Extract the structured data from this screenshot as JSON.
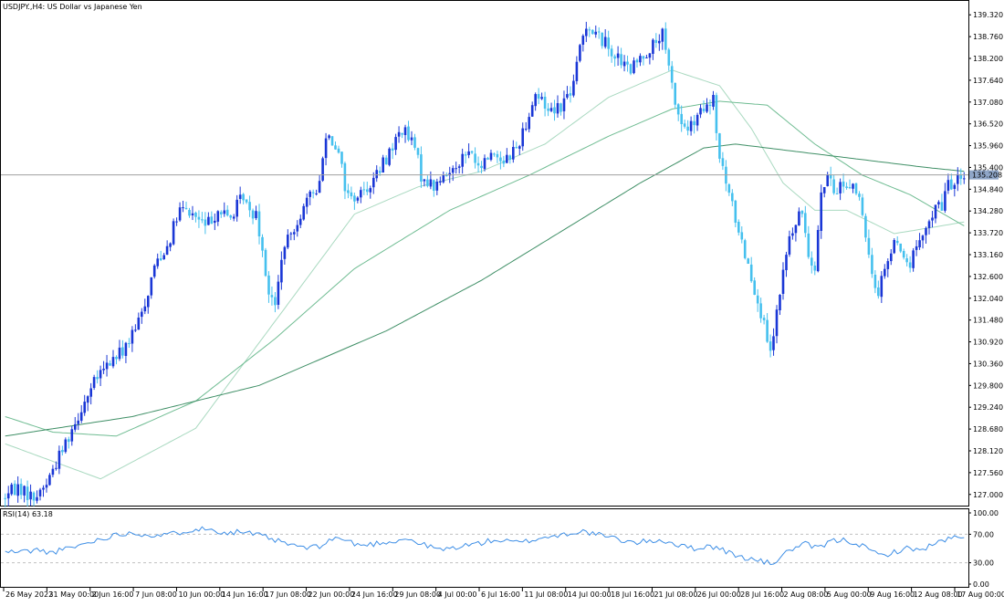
{
  "window": {
    "title": "USDJPY.,H4: US Dollar vs Japanese Yen"
  },
  "chart_data": {
    "type": "candlestick",
    "symbol": "USDJPY.",
    "timeframe": "H4",
    "description": "US Dollar vs Japanese Yen",
    "price_axis": {
      "ticks": [
        "139.320",
        "138.760",
        "138.200",
        "137.640",
        "137.080",
        "136.520",
        "135.960",
        "135.400",
        "134.840",
        "134.280",
        "133.720",
        "133.160",
        "132.600",
        "132.040",
        "131.480",
        "130.920",
        "130.360",
        "129.800",
        "129.240",
        "128.680",
        "128.120",
        "127.560",
        "127.000"
      ],
      "range": [
        126.76,
        139.56
      ],
      "current_price": "135.208",
      "current_price_value": 135.208,
      "current_line_color": "#a0a0a0",
      "current_label_bg": "#8fa6c8"
    },
    "time_axis": {
      "labels": [
        "26 May 2022",
        "31 May 00:00",
        "2 Jun 16:00",
        "7 Jun 08:00",
        "10 Jun 00:00",
        "14 Jun 16:00",
        "17 Jun 08:00",
        "22 Jun 00:00",
        "24 Jun 16:00",
        "29 Jun 08:00",
        "4 Jul 00:00",
        "6 Jul 16:00",
        "11 Jul 08:00",
        "14 Jul 00:00",
        "18 Jul 16:00",
        "21 Jul 08:00",
        "26 Jul 00:00",
        "28 Jul 16:00",
        "2 Aug 08:00",
        "5 Aug 00:00",
        "9 Aug 16:00",
        "12 Aug 08:00",
        "17 Aug 00:00"
      ]
    },
    "price_path_keypoints": [
      [
        0,
        126.9
      ],
      [
        5,
        127.2
      ],
      [
        10,
        126.9
      ],
      [
        14,
        127.3
      ],
      [
        18,
        128.0
      ],
      [
        22,
        128.7
      ],
      [
        26,
        129.4
      ],
      [
        30,
        130.0
      ],
      [
        34,
        130.4
      ],
      [
        38,
        130.7
      ],
      [
        42,
        131.2
      ],
      [
        46,
        132.2
      ],
      [
        48,
        132.9
      ],
      [
        52,
        133.4
      ],
      [
        56,
        134.3
      ],
      [
        60,
        134.2
      ],
      [
        64,
        133.9
      ],
      [
        68,
        134.3
      ],
      [
        72,
        134.1
      ],
      [
        76,
        134.7
      ],
      [
        78,
        134.2
      ],
      [
        80,
        134.3
      ],
      [
        82,
        133.3
      ],
      [
        84,
        132.2
      ],
      [
        86,
        131.8
      ],
      [
        88,
        133.1
      ],
      [
        92,
        133.9
      ],
      [
        96,
        134.5
      ],
      [
        100,
        135.0
      ],
      [
        102,
        136.3
      ],
      [
        106,
        135.9
      ],
      [
        108,
        134.9
      ],
      [
        110,
        134.6
      ],
      [
        114,
        134.8
      ],
      [
        118,
        135.2
      ],
      [
        122,
        135.8
      ],
      [
        126,
        136.4
      ],
      [
        130,
        135.9
      ],
      [
        132,
        135.2
      ],
      [
        136,
        134.9
      ],
      [
        140,
        135.2
      ],
      [
        144,
        135.6
      ],
      [
        148,
        135.8
      ],
      [
        150,
        135.3
      ],
      [
        154,
        135.8
      ],
      [
        158,
        135.6
      ],
      [
        162,
        135.9
      ],
      [
        164,
        136.3
      ],
      [
        168,
        137.3
      ],
      [
        172,
        136.9
      ],
      [
        176,
        137.0
      ],
      [
        180,
        137.5
      ],
      [
        182,
        138.5
      ],
      [
        184,
        139.1
      ],
      [
        186,
        138.9
      ],
      [
        190,
        138.6
      ],
      [
        194,
        138.2
      ],
      [
        196,
        138.0
      ],
      [
        198,
        137.9
      ],
      [
        202,
        138.3
      ],
      [
        206,
        138.6
      ],
      [
        208,
        138.8
      ],
      [
        210,
        137.9
      ],
      [
        212,
        137.1
      ],
      [
        214,
        136.5
      ],
      [
        216,
        136.4
      ],
      [
        218,
        136.5
      ],
      [
        220,
        136.8
      ],
      [
        222,
        136.9
      ],
      [
        224,
        137.1
      ],
      [
        226,
        135.6
      ],
      [
        228,
        135.0
      ],
      [
        230,
        134.4
      ],
      [
        232,
        133.8
      ],
      [
        234,
        133.2
      ],
      [
        236,
        132.6
      ],
      [
        238,
        132.0
      ],
      [
        240,
        131.3
      ],
      [
        241,
        130.8
      ],
      [
        242,
        130.6
      ],
      [
        244,
        131.6
      ],
      [
        246,
        132.7
      ],
      [
        248,
        133.6
      ],
      [
        250,
        133.9
      ],
      [
        252,
        134.3
      ],
      [
        254,
        133.2
      ],
      [
        256,
        132.9
      ],
      [
        258,
        134.7
      ],
      [
        260,
        135.2
      ],
      [
        262,
        134.7
      ],
      [
        264,
        135.0
      ],
      [
        266,
        134.9
      ],
      [
        268,
        135.0
      ],
      [
        270,
        134.6
      ],
      [
        272,
        133.5
      ],
      [
        274,
        132.6
      ],
      [
        276,
        132.2
      ],
      [
        278,
        132.9
      ],
      [
        280,
        133.2
      ],
      [
        282,
        133.6
      ],
      [
        284,
        133.0
      ],
      [
        286,
        132.9
      ],
      [
        288,
        133.4
      ],
      [
        290,
        133.5
      ],
      [
        292,
        134.0
      ],
      [
        294,
        134.5
      ],
      [
        296,
        134.3
      ],
      [
        298,
        135.1
      ],
      [
        300,
        134.9
      ],
      [
        302,
        135.2
      ]
    ],
    "moving_averages": [
      {
        "period": 50,
        "color": "#a9d9c0",
        "keypoints": [
          [
            0,
            128.3
          ],
          [
            30,
            127.4
          ],
          [
            60,
            128.7
          ],
          [
            90,
            132.0
          ],
          [
            110,
            134.2
          ],
          [
            130,
            134.9
          ],
          [
            150,
            135.3
          ],
          [
            170,
            136.0
          ],
          [
            190,
            137.2
          ],
          [
            210,
            137.9
          ],
          [
            225,
            137.5
          ],
          [
            235,
            136.4
          ],
          [
            245,
            135.0
          ],
          [
            255,
            134.3
          ],
          [
            265,
            134.3
          ],
          [
            280,
            133.7
          ],
          [
            295,
            133.9
          ],
          [
            302,
            134.0
          ]
        ]
      },
      {
        "period": 100,
        "color": "#6fbc92",
        "keypoints": [
          [
            0,
            129.0
          ],
          [
            15,
            128.6
          ],
          [
            35,
            128.5
          ],
          [
            60,
            129.4
          ],
          [
            85,
            131.0
          ],
          [
            110,
            132.8
          ],
          [
            140,
            134.3
          ],
          [
            165,
            135.2
          ],
          [
            190,
            136.2
          ],
          [
            210,
            136.9
          ],
          [
            225,
            137.1
          ],
          [
            240,
            137.0
          ],
          [
            255,
            136.0
          ],
          [
            270,
            135.2
          ],
          [
            285,
            134.7
          ],
          [
            302,
            133.9
          ]
        ]
      },
      {
        "period": 200,
        "color": "#3f8f66",
        "keypoints": [
          [
            0,
            128.5
          ],
          [
            40,
            129.0
          ],
          [
            80,
            129.8
          ],
          [
            120,
            131.2
          ],
          [
            150,
            132.5
          ],
          [
            180,
            134.0
          ],
          [
            200,
            135.0
          ],
          [
            220,
            135.9
          ],
          [
            230,
            136.0
          ],
          [
            250,
            135.8
          ],
          [
            270,
            135.6
          ],
          [
            290,
            135.4
          ],
          [
            302,
            135.3
          ]
        ]
      }
    ],
    "indicator": {
      "name": "RSI(14)",
      "value": "63.18",
      "ticks": [
        "100.00",
        "70.00",
        "30.00",
        "0.00"
      ],
      "levels": [
        70,
        30
      ],
      "color": "#3d8ee6",
      "keypoints": [
        [
          0,
          45
        ],
        [
          6,
          46
        ],
        [
          10,
          48
        ],
        [
          14,
          44
        ],
        [
          20,
          50
        ],
        [
          26,
          58
        ],
        [
          32,
          66
        ],
        [
          38,
          72
        ],
        [
          44,
          70
        ],
        [
          50,
          68
        ],
        [
          56,
          74
        ],
        [
          60,
          78
        ],
        [
          66,
          76
        ],
        [
          70,
          72
        ],
        [
          74,
          74
        ],
        [
          78,
          70
        ],
        [
          82,
          66
        ],
        [
          86,
          60
        ],
        [
          90,
          55
        ],
        [
          96,
          50
        ],
        [
          100,
          55
        ],
        [
          104,
          66
        ],
        [
          108,
          60
        ],
        [
          112,
          54
        ],
        [
          118,
          58
        ],
        [
          122,
          60
        ],
        [
          126,
          64
        ],
        [
          130,
          58
        ],
        [
          134,
          52
        ],
        [
          138,
          48
        ],
        [
          142,
          52
        ],
        [
          146,
          55
        ],
        [
          150,
          58
        ],
        [
          154,
          62
        ],
        [
          158,
          60
        ],
        [
          162,
          58
        ],
        [
          166,
          62
        ],
        [
          170,
          66
        ],
        [
          174,
          68
        ],
        [
          178,
          72
        ],
        [
          182,
          74
        ],
        [
          186,
          70
        ],
        [
          190,
          66
        ],
        [
          194,
          62
        ],
        [
          198,
          58
        ],
        [
          202,
          60
        ],
        [
          206,
          62
        ],
        [
          210,
          58
        ],
        [
          214,
          52
        ],
        [
          218,
          50
        ],
        [
          222,
          54
        ],
        [
          226,
          48
        ],
        [
          230,
          40
        ],
        [
          234,
          36
        ],
        [
          238,
          32
        ],
        [
          240,
          30
        ],
        [
          242,
          29
        ],
        [
          244,
          38
        ],
        [
          248,
          50
        ],
        [
          252,
          56
        ],
        [
          256,
          50
        ],
        [
          260,
          60
        ],
        [
          264,
          62
        ],
        [
          268,
          58
        ],
        [
          272,
          48
        ],
        [
          276,
          40
        ],
        [
          280,
          45
        ],
        [
          284,
          50
        ],
        [
          288,
          48
        ],
        [
          292,
          55
        ],
        [
          296,
          62
        ],
        [
          300,
          66
        ],
        [
          302,
          63
        ]
      ]
    },
    "candle_colors": {
      "up": "#1a37d6",
      "down": "#45c0ee"
    },
    "grid": false,
    "legend": "none",
    "n_bars": 303
  }
}
